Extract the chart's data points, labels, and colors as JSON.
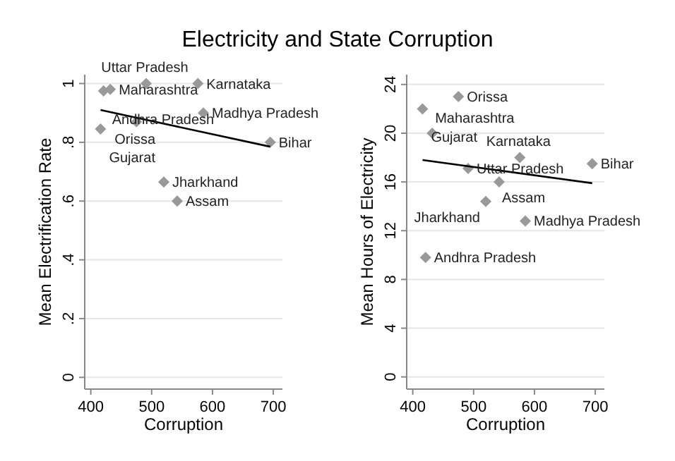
{
  "chart_data": [
    {
      "type": "scatter",
      "title": "Electricity and State Corruption",
      "xlabel": "Corruption",
      "ylabel": "Mean Electrification Rate",
      "xlim": [
        390,
        715
      ],
      "xticks": [
        400,
        500,
        600,
        700
      ],
      "ylim": [
        -0.04,
        1.03
      ],
      "yticks": [
        0,
        {
          "value": 0.2,
          "label": ".2"
        },
        {
          "value": 0.4,
          "label": ".4"
        },
        {
          "value": 0.6,
          "label": ".6"
        },
        {
          "value": 0.8,
          "label": ".8"
        },
        1
      ],
      "grid": "y",
      "series": [
        {
          "color": "#999999",
          "marker": "diamond",
          "x": [
            421,
            432,
            491,
            576,
            475,
            416,
            585,
            695,
            520,
            542
          ],
          "values": [
            0.975,
            0.98,
            1.0,
            1.0,
            0.87,
            0.845,
            0.9,
            0.8,
            0.665,
            0.6
          ]
        },
        {
          "type": "line",
          "color": "#000000",
          "x": [
            416,
            695
          ],
          "values": [
            0.91,
            0.785
          ]
        }
      ],
      "annotations": [
        {
          "text": "Andhra Pradesh",
          "x": 421,
          "y": 0.975
        },
        {
          "text": "Maharashtra",
          "x": 432,
          "y": 0.98
        },
        {
          "text": "Uttar Pradesh",
          "x": 491,
          "y": 1.0
        },
        {
          "text": "Karnataka",
          "x": 576,
          "y": 1.0
        },
        {
          "text": "Orissa",
          "x": 475,
          "y": 0.87
        },
        {
          "text": "Gujarat",
          "x": 416,
          "y": 0.845
        },
        {
          "text": "Madhya Pradesh",
          "x": 585,
          "y": 0.9
        },
        {
          "text": "Bihar",
          "x": 695,
          "y": 0.8
        },
        {
          "text": "Jharkhand",
          "x": 520,
          "y": 0.665
        },
        {
          "text": "Assam",
          "x": 542,
          "y": 0.6
        }
      ]
    },
    {
      "type": "scatter",
      "xlabel": "Corruption",
      "ylabel": "Mean Hours of Electricity",
      "xlim": [
        390,
        715
      ],
      "xticks": [
        400,
        500,
        600,
        700
      ],
      "ylim": [
        -1,
        24.8
      ],
      "yticks": [
        0,
        4,
        8,
        12,
        16,
        20,
        24
      ],
      "grid": "y",
      "series": [
        {
          "color": "#999999",
          "marker": "diamond",
          "x": [
            475,
            416,
            432,
            576,
            695,
            491,
            542,
            520,
            585,
            421
          ],
          "values": [
            23,
            22,
            20,
            18,
            17.5,
            17.1,
            16,
            14.4,
            12.8,
            9.8
          ]
        },
        {
          "type": "line",
          "color": "#000000",
          "x": [
            416,
            695
          ],
          "values": [
            17.8,
            15.9
          ]
        }
      ],
      "annotations": [
        {
          "text": "Orissa",
          "x": 475,
          "y": 23
        },
        {
          "text": "Gujarat",
          "x": 416,
          "y": 22
        },
        {
          "text": "Maharashtra",
          "x": 432,
          "y": 20
        },
        {
          "text": "Karnataka",
          "x": 576,
          "y": 18
        },
        {
          "text": "Bihar",
          "x": 695,
          "y": 17.5
        },
        {
          "text": "Uttar Pradesh",
          "x": 491,
          "y": 17.1
        },
        {
          "text": "Assam",
          "x": 542,
          "y": 16
        },
        {
          "text": "Jharkhand",
          "x": 520,
          "y": 14.4
        },
        {
          "text": "Madhya Pradesh",
          "x": 585,
          "y": 12.8
        },
        {
          "text": "Andhra Pradesh",
          "x": 421,
          "y": 9.8
        }
      ]
    }
  ]
}
